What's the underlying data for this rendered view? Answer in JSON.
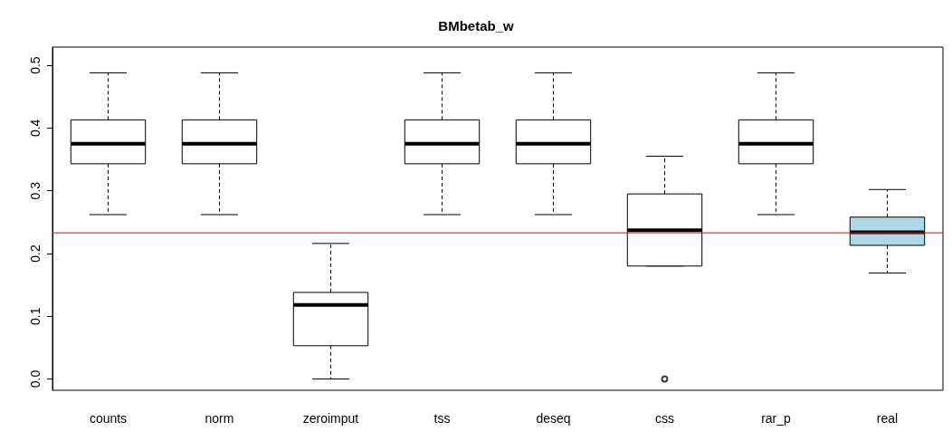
{
  "chart_data": {
    "type": "box",
    "title": "BMbetab_w",
    "categories": [
      "counts",
      "norm",
      "zeroimput",
      "tss",
      "deseq",
      "css",
      "rar_p",
      "real"
    ],
    "boxes": [
      {
        "low": 0.262,
        "q1": 0.343,
        "median": 0.375,
        "q3": 0.413,
        "high": 0.488
      },
      {
        "low": 0.262,
        "q1": 0.343,
        "median": 0.375,
        "q3": 0.413,
        "high": 0.488
      },
      {
        "low": 0.0,
        "q1": 0.053,
        "median": 0.118,
        "q3": 0.138,
        "high": 0.216
      },
      {
        "low": 0.262,
        "q1": 0.343,
        "median": 0.375,
        "q3": 0.413,
        "high": 0.488
      },
      {
        "low": 0.262,
        "q1": 0.343,
        "median": 0.375,
        "q3": 0.413,
        "high": 0.488
      },
      {
        "low": 0.18,
        "q1": 0.18,
        "median": 0.237,
        "q3": 0.295,
        "high": 0.355,
        "outliers": [
          0.0
        ]
      },
      {
        "low": 0.262,
        "q1": 0.343,
        "median": 0.375,
        "q3": 0.413,
        "high": 0.488
      },
      {
        "low": 0.169,
        "q1": 0.213,
        "median": 0.234,
        "q3": 0.258,
        "high": 0.302
      }
    ],
    "colors": [
      "#ffffff",
      "#ffffff",
      "#ffffff",
      "#ffffff",
      "#ffffff",
      "#ffffff",
      "#ffffff",
      "#add8e6"
    ],
    "ylim": [
      -0.018,
      0.529
    ],
    "yticks": [
      {
        "value": 0,
        "label": "0.0"
      },
      0.1,
      0.2,
      0.3,
      0.4,
      0.5
    ],
    "ref_lines": [
      {
        "axis": "y",
        "value": 0.233,
        "color": "#ff0000"
      }
    ]
  }
}
